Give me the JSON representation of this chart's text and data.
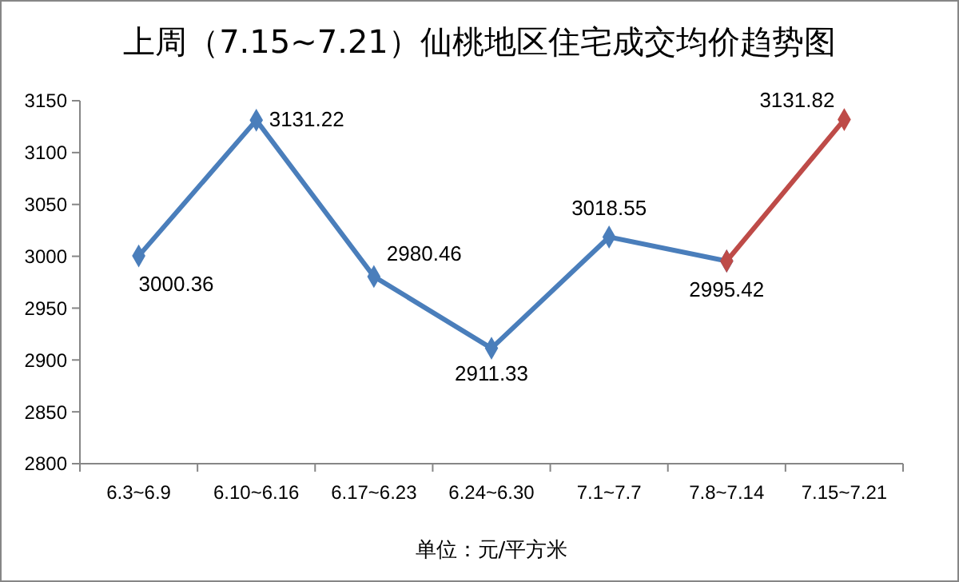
{
  "chart_data": {
    "type": "line",
    "title": "上周（7.15~7.21）仙桃地区住宅成交均价趋势图",
    "xlabel": "单位：元/平方米",
    "categories": [
      "6.3~6.9",
      "6.10~6.16",
      "6.17~6.23",
      "6.24~6.30",
      "7.1~7.7",
      "7.8~7.14",
      "7.15~7.21"
    ],
    "series": [
      {
        "color": "#4a7ebb",
        "values": [
          3000.36,
          3131.22,
          2980.46,
          2911.33,
          3018.55,
          2995.42,
          null
        ],
        "value_labels": [
          "3000.36",
          "3131.22",
          "2980.46",
          "2911.33",
          "3018.55",
          "2995.42",
          null
        ]
      },
      {
        "color": "#be4b48",
        "values": [
          null,
          null,
          null,
          null,
          null,
          2995.42,
          3131.82
        ],
        "value_labels": [
          null,
          null,
          null,
          null,
          null,
          null,
          "3131.82"
        ]
      }
    ],
    "ylim": [
      2800,
      3150
    ],
    "yticks": [
      2800,
      2850,
      2900,
      2950,
      3000,
      3050,
      3100,
      3150
    ],
    "grid": false,
    "marker": "diamond",
    "line_style": "solid"
  }
}
